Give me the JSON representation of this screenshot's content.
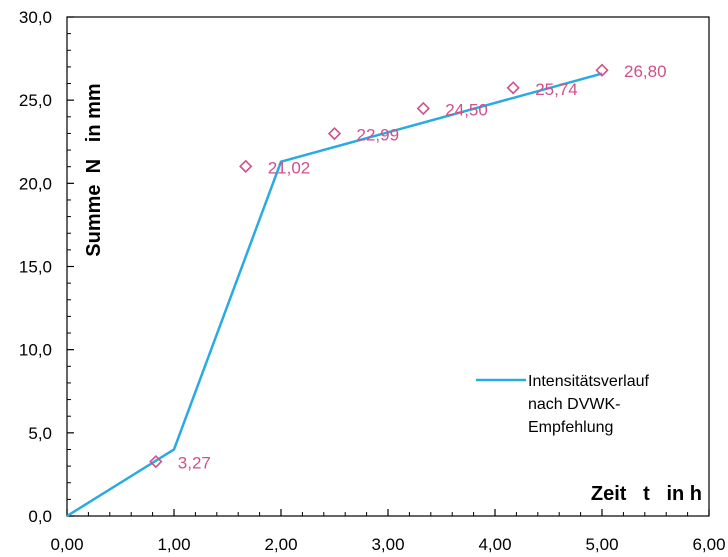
{
  "chart_data": {
    "type": "line",
    "title": "",
    "xlabel": "Zeit   t   in h",
    "ylabel": "Summe  N   in mm",
    "xlim": [
      0,
      6
    ],
    "ylim": [
      0,
      30
    ],
    "x_ticks": [
      "0,00",
      "1,00",
      "2,00",
      "3,00",
      "4,00",
      "5,00",
      "6,00"
    ],
    "y_ticks": [
      "0,0",
      "5,0",
      "10,0",
      "15,0",
      "20,0",
      "25,0",
      "30,0"
    ],
    "grid": false,
    "legend_position": "right",
    "series": [
      {
        "name": "Intensitätsverlauf nach DVWK-Empfehlung",
        "kind": "line",
        "color": "#29abe2",
        "x": [
          0,
          1.0,
          2.0,
          5.0
        ],
        "y": [
          0,
          4.0,
          21.3,
          26.6
        ]
      },
      {
        "kind": "marker",
        "marker": "diamond-open",
        "color": "#d0508a",
        "x": [
          0.83,
          1.67,
          2.5,
          3.33,
          4.17,
          5.0
        ],
        "y": [
          3.27,
          21.02,
          22.99,
          24.5,
          25.74,
          26.8
        ],
        "labels": [
          "3,27",
          "21,02",
          "22,99",
          "24,50",
          "25,74",
          "26,80"
        ]
      }
    ],
    "legend_lines": [
      "Intensitätsverlauf",
      "nach DVWK-",
      "Empfehlung"
    ]
  }
}
